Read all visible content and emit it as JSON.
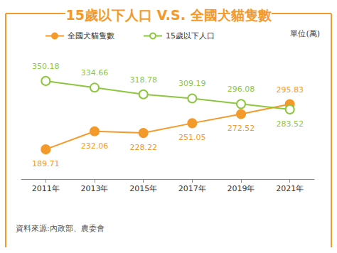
{
  "chart_data": {
    "type": "line",
    "title": "15歲以下人口 V.S. 全國犬貓隻數",
    "unit": "單位(萬)",
    "source": "資料來源:內政部、農委會",
    "categories": [
      "2011年",
      "2013年",
      "2015年",
      "2017年",
      "2019年",
      "2021年"
    ],
    "series": [
      {
        "name": "全國犬貓隻數",
        "color": "#f39a2b",
        "marker": "circle",
        "values": [
          189.71,
          232.06,
          228.22,
          251.05,
          272.52,
          295.83
        ]
      },
      {
        "name": "15歲以下人口",
        "color": "#8dc63f",
        "marker": "emptyCircle",
        "values": [
          350.18,
          334.66,
          318.78,
          309.19,
          296.08,
          283.52
        ]
      }
    ],
    "ylim": [
      120,
      390
    ],
    "grid": false,
    "legend": "top",
    "data_labels": true,
    "tick_labels": "x"
  }
}
